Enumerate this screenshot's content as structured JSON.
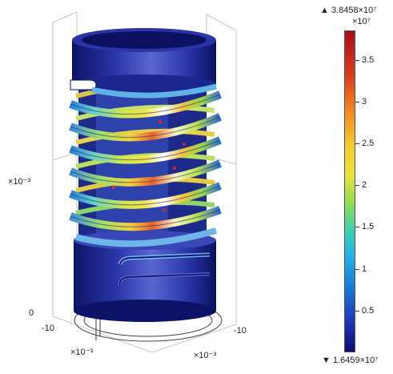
{
  "scene": {
    "axes": {
      "z_exponent_label": "×10⁻³",
      "z_zero_label": "0",
      "x_left_tick": "-10",
      "x_right_tick": "-10",
      "x_left_exponent_label": "×10⁻³",
      "x_right_exponent_label": "×10⁻³"
    },
    "colors": {
      "low": "#1a1f8e",
      "mid_cyan": "#21b3e6",
      "mid_yellow": "#f2e33a",
      "high": "#b0141a"
    }
  },
  "colorbar": {
    "max_label": "▲ 3.8458×10⁷",
    "min_label": "▼ 1.6459×10⁷",
    "exponent_label": "×10⁷",
    "ticks": [
      "3.5",
      "3",
      "2.5",
      "2",
      "1.5",
      "1",
      "0.5"
    ],
    "tick_values": [
      3.5,
      3.0,
      2.5,
      2.0,
      1.5,
      1.0,
      0.5
    ],
    "range_min": 0.0,
    "range_max": 3.85
  }
}
